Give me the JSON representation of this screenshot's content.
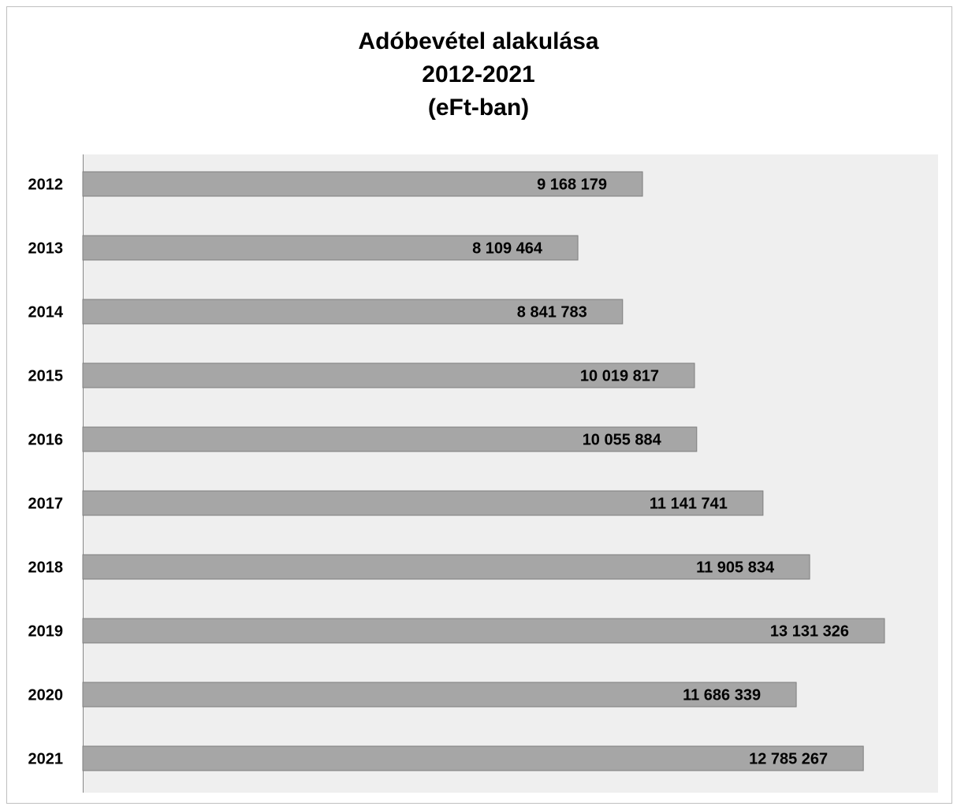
{
  "chart_data": {
    "type": "bar",
    "orientation": "horizontal",
    "title_lines": [
      "Adóbevétel alakulása",
      "2012-2021",
      "(eFt-ban)"
    ],
    "categories": [
      "2012",
      "2013",
      "2014",
      "2015",
      "2016",
      "2017",
      "2018",
      "2019",
      "2020",
      "2021"
    ],
    "values": [
      9168179,
      8109464,
      8841783,
      10019817,
      10055884,
      11141741,
      11905834,
      13131326,
      11686339,
      12785267
    ],
    "value_labels": [
      "9 168 179",
      "8 109 464",
      "8 841 783",
      "10 019 817",
      "10 055 884",
      "11 141 741",
      "11 905 834",
      "13 131 326",
      "11 686 339",
      "12 785 267"
    ],
    "xlim": [
      0,
      14400000
    ],
    "grid": false,
    "legend": "none",
    "colors": {
      "bar": "#a6a6a6",
      "bar_border": "#7f7f7f",
      "plot_bg": "#efefef",
      "axis": "#868686"
    }
  }
}
